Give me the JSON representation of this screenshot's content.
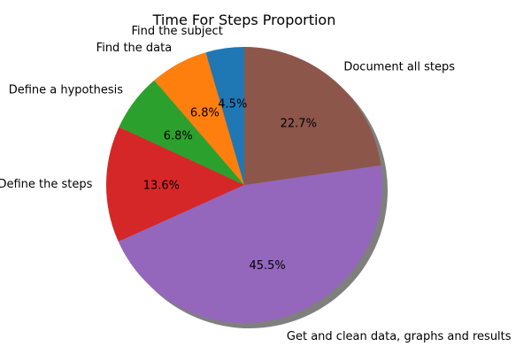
{
  "chart_data": {
    "type": "pie",
    "title": "Time For Steps Proportion",
    "start_angle_deg": 90,
    "direction": "counterclockwise",
    "shadow": true,
    "slices": [
      {
        "label": "Find the subject",
        "value": 4.5,
        "pct_label": "4.5%",
        "color": "#1f77b4"
      },
      {
        "label": "Find the data",
        "value": 6.8,
        "pct_label": "6.8%",
        "color": "#ff7f0e"
      },
      {
        "label": "Define a hypothesis",
        "value": 6.8,
        "pct_label": "6.8%",
        "color": "#2ca02c"
      },
      {
        "label": "Define the steps",
        "value": 13.6,
        "pct_label": "13.6%",
        "color": "#d62728"
      },
      {
        "label": "Get and clean data, graphs and results",
        "value": 45.5,
        "pct_label": "45.5%",
        "color": "#9467bd"
      },
      {
        "label": "Document all steps",
        "value": 22.7,
        "pct_label": "22.7%",
        "color": "#8c564b"
      }
    ]
  }
}
